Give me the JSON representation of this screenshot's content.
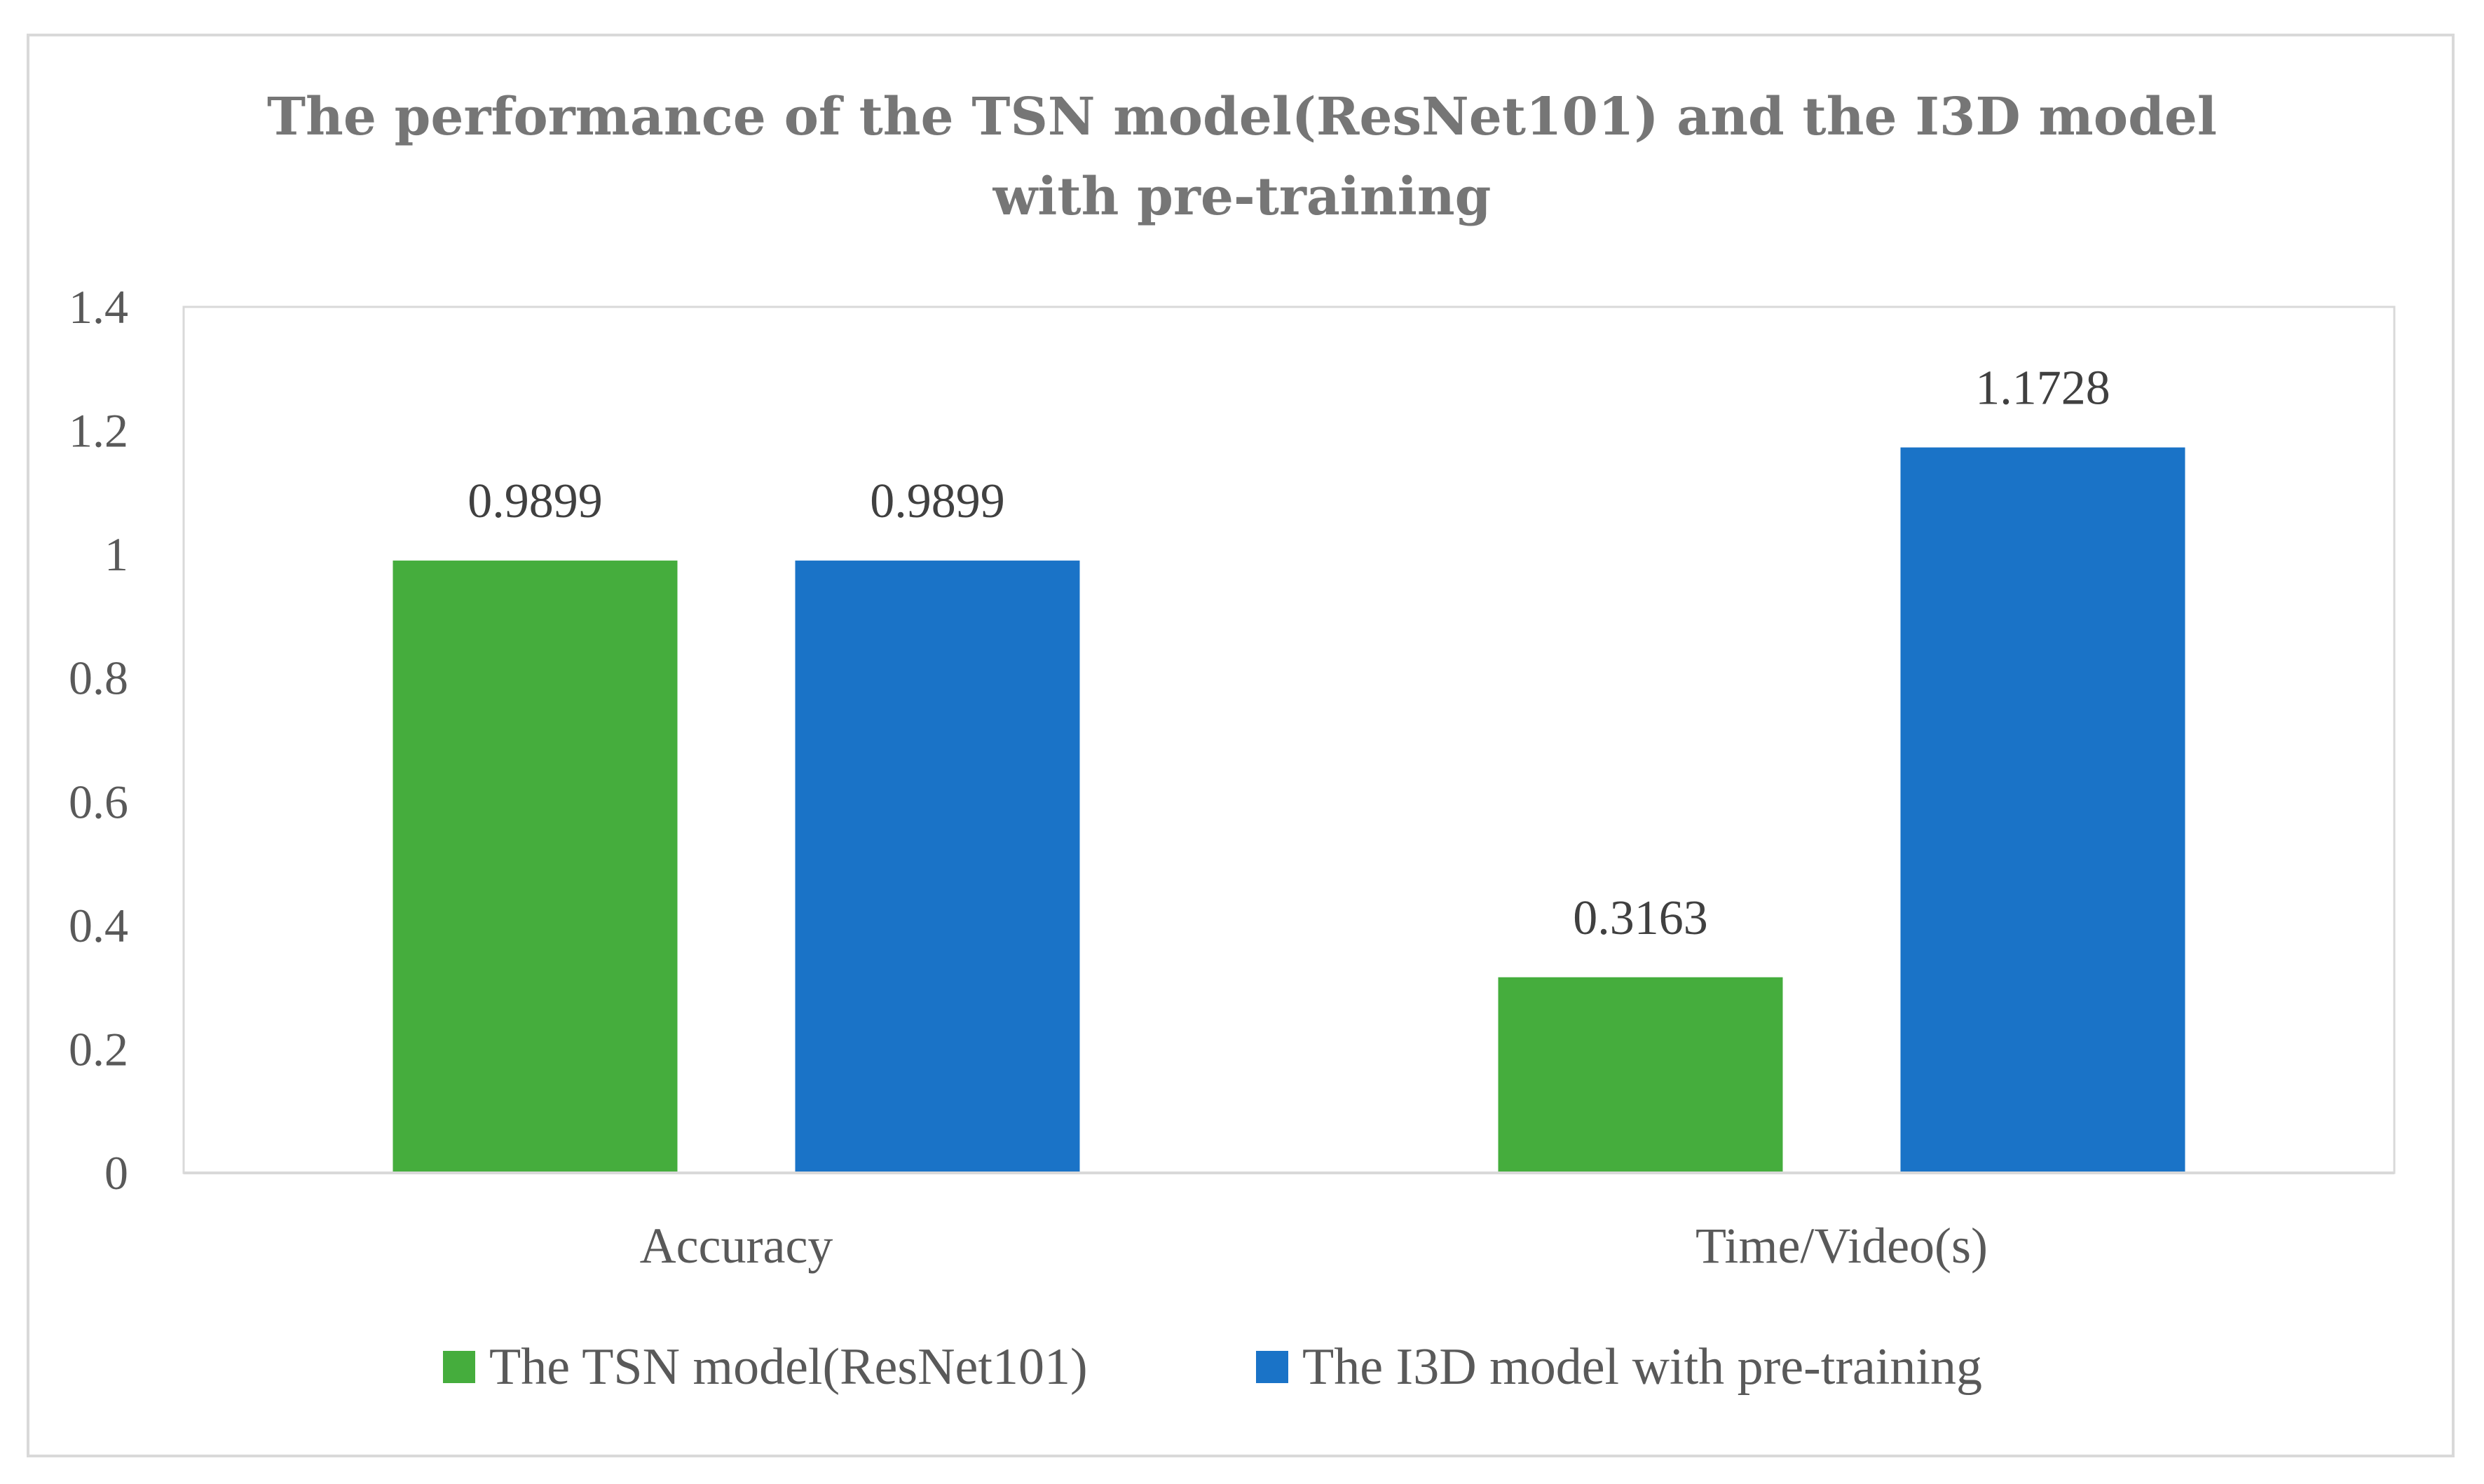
{
  "chart_data": {
    "type": "bar",
    "title_lines": [
      "The performance of the TSN model(ResNet101) and the I3D model",
      "with pre-training"
    ],
    "categories": [
      "Accuracy",
      "Time/Video(s)"
    ],
    "series": [
      {
        "name": "The TSN model(ResNet101)",
        "color": "#45ad3d",
        "values": [
          0.9899,
          0.3163
        ]
      },
      {
        "name": "The I3D model with pre-training",
        "color": "#1a73c7",
        "values": [
          0.9899,
          1.1728
        ]
      }
    ],
    "data_labels": [
      [
        "0.9899",
        "0.3163"
      ],
      [
        "0.9899",
        "1.1728"
      ]
    ],
    "ylim": [
      0,
      1.4
    ],
    "yticks": [
      "0",
      "0.2",
      "0.4",
      "0.6",
      "0.8",
      "1",
      "1.2",
      "1.4"
    ],
    "xlabel": "",
    "ylabel": "",
    "legend_position": "bottom",
    "grid": false
  }
}
